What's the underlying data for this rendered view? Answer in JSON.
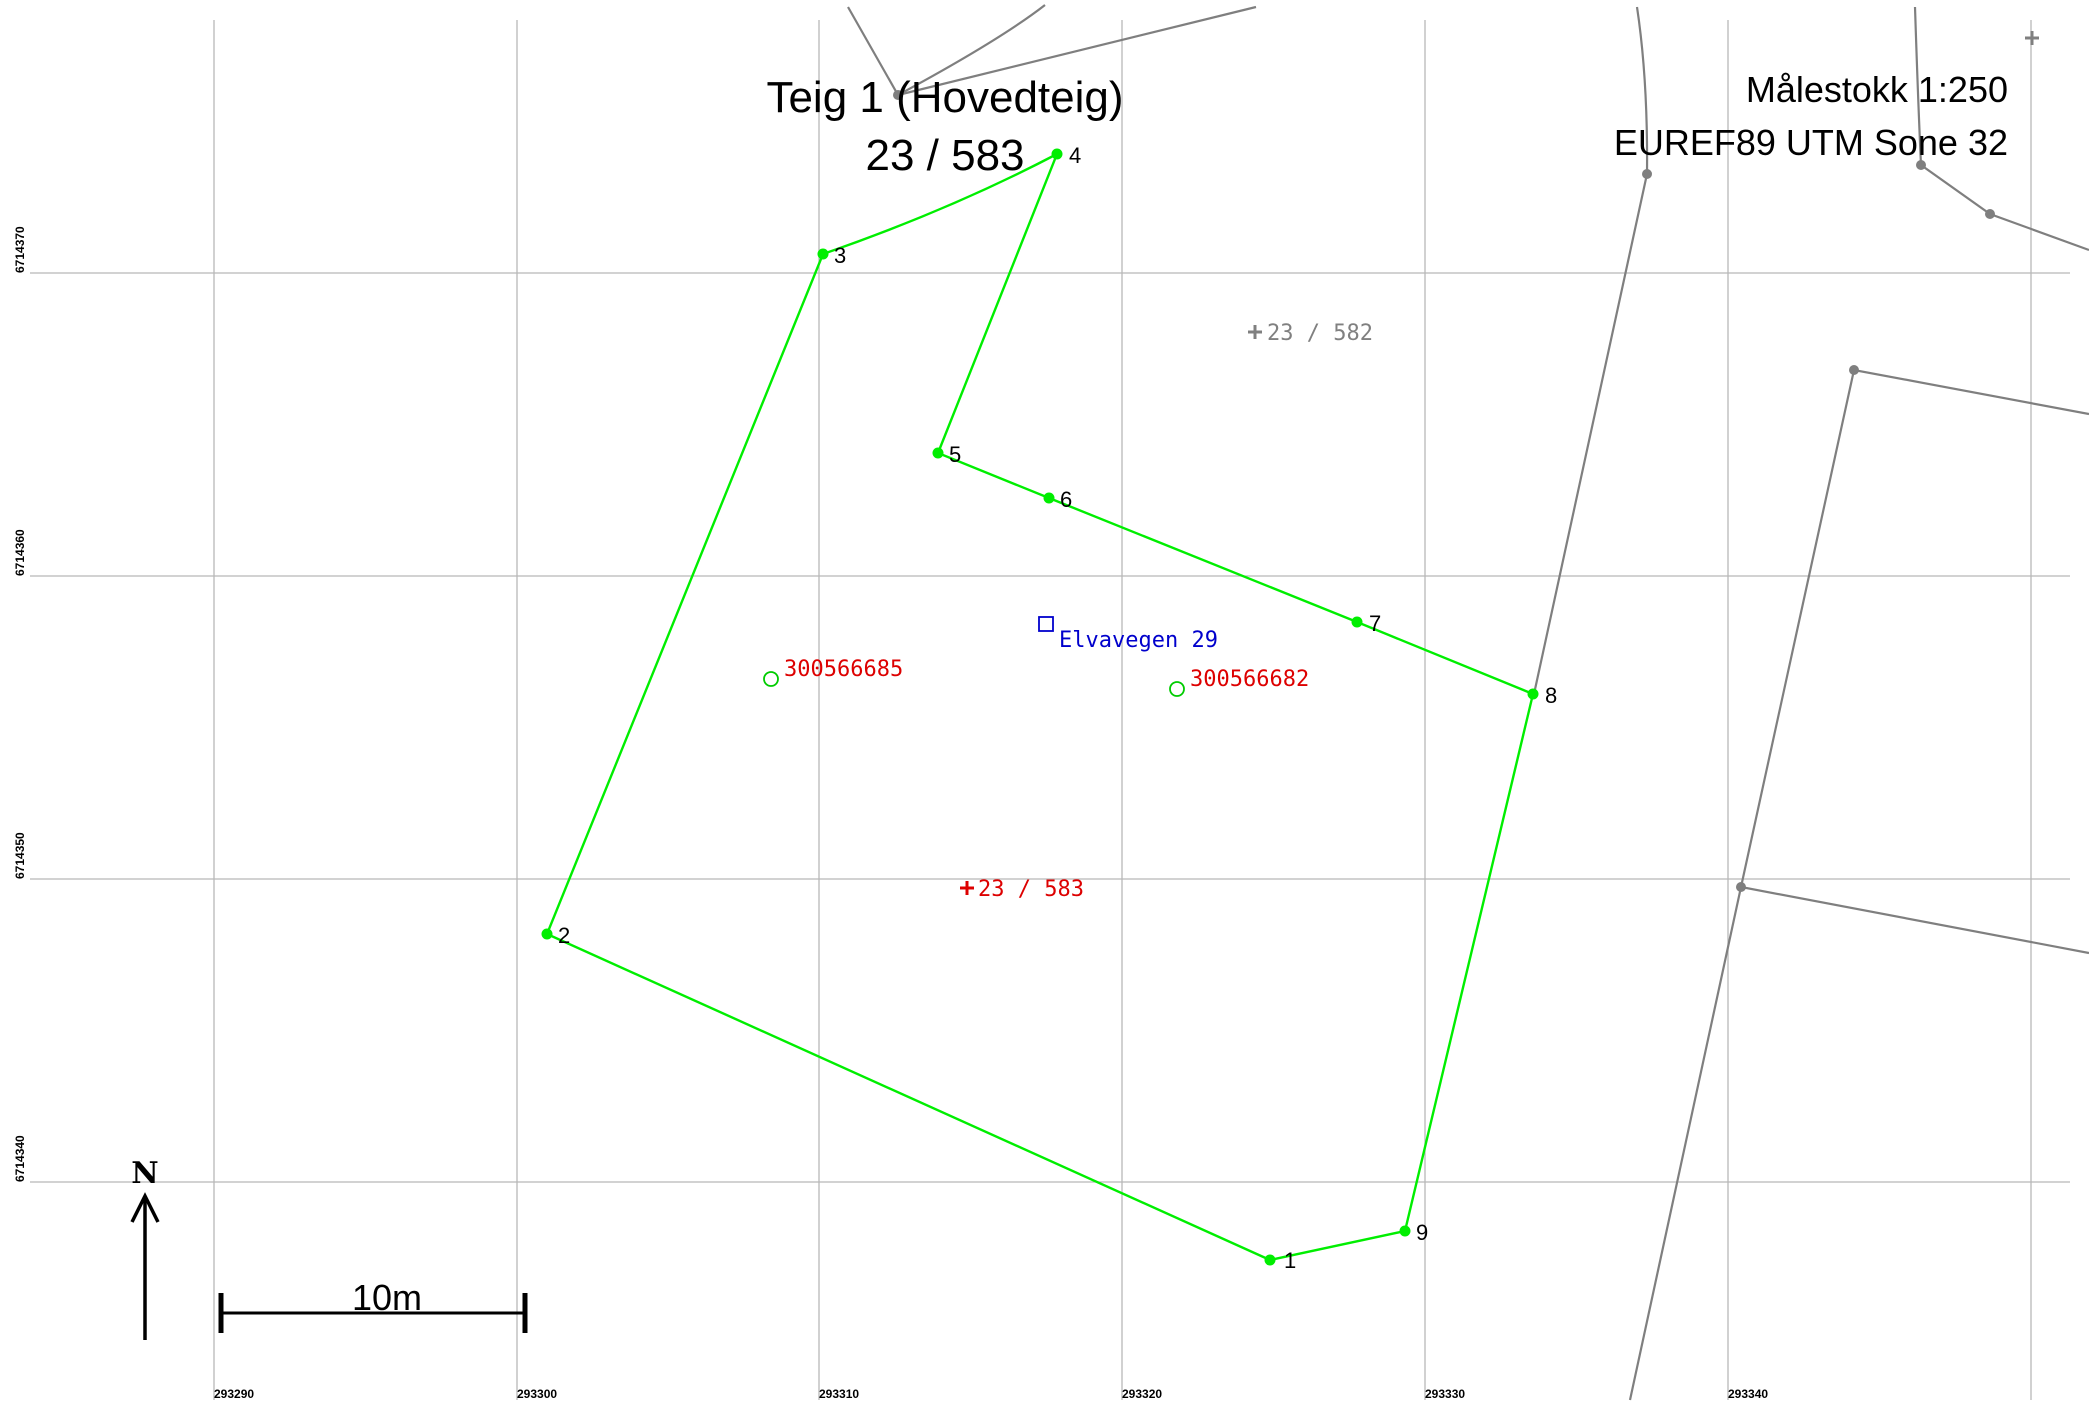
{
  "title": {
    "line1": "Teig 1 (Hovedteig)",
    "line2": "23 / 583"
  },
  "scale_text": "Målestokk 1:250",
  "crs_text": "EUREF89 UTM Sone 32",
  "north_label": "N",
  "scalebar_label": "10m",
  "grid": {
    "x_ticks": [
      "293290",
      "293300",
      "293310",
      "293320",
      "293330",
      "293340"
    ],
    "y_ticks": [
      "6714370",
      "6714360",
      "6714350",
      "6714340"
    ]
  },
  "boundary_points": [
    "1",
    "2",
    "3",
    "4",
    "5",
    "6",
    "7",
    "8",
    "9"
  ],
  "labels": {
    "parcel_main": "23 / 583",
    "parcel_neighbor": "23 / 582",
    "address": "Elvavegen 29",
    "building_a": "300566685",
    "building_b": "300566682"
  },
  "colors": {
    "boundary": "#00ee00",
    "neighbor_lines": "#7f7f7f",
    "grid": "#b8b8b8",
    "building_id": "#dd0000",
    "address": "#0000cc",
    "neighbor_label": "#808080"
  }
}
